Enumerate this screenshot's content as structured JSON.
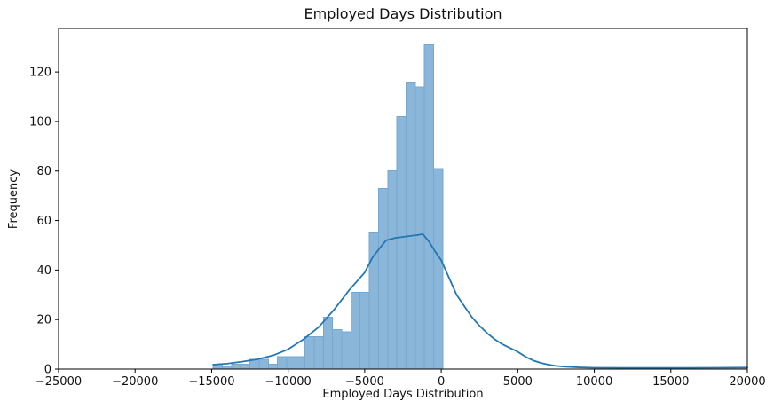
{
  "figure": {
    "title": "Employed Days Distribution",
    "xlabel": "Employed Days Distribution",
    "ylabel": "Frequency"
  },
  "chart_data": {
    "type": "bar",
    "subtype": "histogram-with-kde",
    "title": "Employed Days Distribution",
    "xlabel": "Employed Days Distribution",
    "ylabel": "Frequency",
    "xlim": [
      -25000,
      20000
    ],
    "ylim": [
      0,
      137.6
    ],
    "x_ticks": [
      -25000,
      -20000,
      -15000,
      -10000,
      -5000,
      0,
      5000,
      10000,
      15000,
      20000
    ],
    "y_ticks": [
      0,
      20,
      40,
      60,
      80,
      100,
      120
    ],
    "grid": false,
    "legend_position": "none",
    "bins": {
      "start": -14900,
      "bin_width": 600,
      "counts": [
        2,
        1,
        2,
        2,
        4,
        4,
        2,
        5,
        5,
        5,
        13,
        13,
        21,
        16,
        15,
        31,
        31,
        55,
        73,
        80,
        102,
        116,
        114,
        131,
        81
      ]
    },
    "series": [
      {
        "name": "kde",
        "type": "line",
        "x": [
          -14900,
          -14000,
          -13000,
          -12000,
          -11000,
          -10000,
          -9000,
          -8000,
          -7000,
          -6000,
          -5000,
          -4500,
          -4000,
          -3600,
          -3000,
          -2500,
          -2000,
          -1500,
          -1200,
          -800,
          -400,
          0,
          500,
          1000,
          1500,
          2000,
          2500,
          3000,
          3500,
          4000,
          4500,
          5000,
          5500,
          6000,
          6500,
          7000,
          7500,
          8000,
          9000,
          10000,
          12000,
          14000,
          16000,
          18000,
          20000
        ],
        "y": [
          1.8,
          2.2,
          3,
          4,
          5.5,
          8,
          12,
          17,
          24,
          32,
          39,
          45,
          49,
          52,
          53,
          53.4,
          53.8,
          54.2,
          54.5,
          51.5,
          47.5,
          44,
          37,
          30,
          25.5,
          21,
          17.5,
          14.5,
          12,
          10,
          8.5,
          7,
          5,
          3.5,
          2.5,
          1.8,
          1.3,
          1,
          0.7,
          0.55,
          0.5,
          0.5,
          0.5,
          0.55,
          0.6
        ]
      }
    ],
    "colors": {
      "bar_fill": "#8ab6da",
      "bar_edge": "#76a7ce",
      "kde_line": "#2277b4",
      "spine": "#000000",
      "tick_text": "#111111"
    }
  }
}
